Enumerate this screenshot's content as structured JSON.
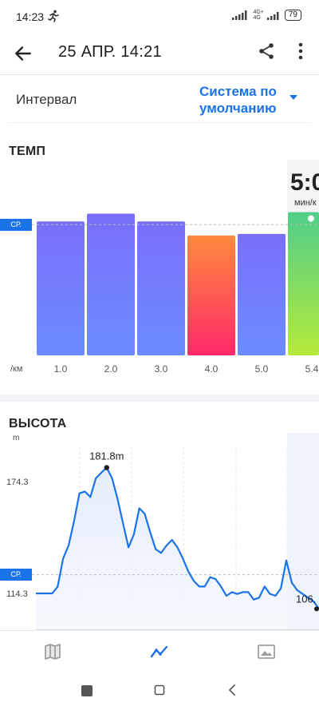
{
  "status_bar": {
    "time": "14:23",
    "network_label_top": "4G+",
    "network_label_bottom": "4G",
    "battery": "79",
    "icons": [
      "running-icon",
      "signal-icon",
      "battery-icon"
    ]
  },
  "app_bar": {
    "title": "25 АПР. 14:21",
    "icons": [
      "back-arrow-icon",
      "share-icon",
      "more-vert-icon"
    ]
  },
  "interval": {
    "label": "Интервал",
    "value": "Система по умолчанию"
  },
  "pace": {
    "title": "ТЕМП",
    "avg_label": "СР.",
    "unit_label": "/км",
    "tooltip_value": "5:0",
    "tooltip_unit": "мин/к",
    "colors": {
      "bar_top": "#7a6ff8",
      "bar_bottom": "#6b8cff",
      "slow_top": "#ff8a3d",
      "slow_bottom": "#ff2a6a",
      "fast_top": "#4fce8a",
      "fast_bottom": "#b5ea3a",
      "avg_badge": "#1a73e8"
    }
  },
  "elevation": {
    "title": "ВЫСОТА",
    "unit": "m",
    "avg_label": "СР.",
    "max_label": "181.8m",
    "end_label": "106.",
    "line_color": "#1a73e8"
  },
  "chart_data": [
    {
      "type": "bar",
      "title": "ТЕМП",
      "categories": [
        "1.0",
        "2.0",
        "3.0",
        "4.0",
        "5.0",
        "5.4"
      ],
      "values": [
        0.86,
        0.91,
        0.86,
        0.77,
        0.78,
        0.92
      ],
      "value_meaning": "relative bar height (fraction of plot height); pace values not printed",
      "avg": 0.84,
      "ylabel": "/км",
      "highlight": {
        "category": "5.4",
        "label": "5:0",
        "unit": "мин/к"
      }
    },
    {
      "type": "area",
      "title": "ВЫСОТА",
      "ylabel": "m",
      "y_ticks": [
        174.3,
        114.3
      ],
      "avg": 124.3,
      "max_label": "181.8m",
      "end_label": "106.",
      "x": [
        0,
        1,
        2,
        3,
        4,
        5,
        6,
        7,
        8,
        9,
        10,
        11,
        12,
        13,
        14,
        15,
        16,
        17,
        18,
        19,
        20,
        21,
        22,
        23,
        24,
        25,
        26,
        27,
        28,
        29,
        30,
        31,
        32,
        33,
        34,
        35,
        36,
        37,
        38,
        39,
        40,
        41,
        42,
        43,
        44,
        45,
        46,
        47,
        48,
        49,
        50,
        51,
        52
      ],
      "values": [
        114.3,
        114.3,
        114.3,
        114.3,
        118,
        133,
        140,
        153,
        168,
        169,
        166,
        176,
        179,
        181.8,
        176,
        165,
        152,
        139,
        146,
        160,
        157,
        147,
        138,
        136,
        140,
        143,
        139,
        133,
        126,
        121,
        118,
        118,
        123,
        122,
        118,
        113,
        115,
        114,
        115,
        115,
        111,
        112,
        118,
        114,
        113,
        117,
        132,
        120,
        116,
        114,
        112,
        110,
        106
      ]
    }
  ],
  "bottom_nav": {
    "items": [
      "map-icon",
      "chart-icon",
      "image-icon"
    ]
  }
}
